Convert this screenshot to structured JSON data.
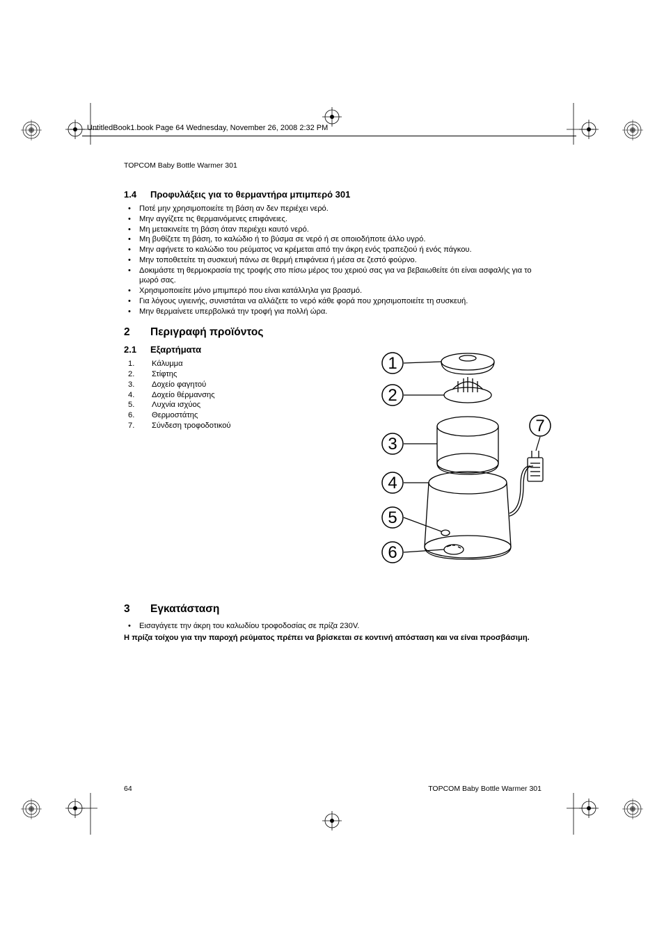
{
  "header_line": "UntitledBook1.book  Page 64  Wednesday, November 26, 2008  2:32 PM",
  "running_head": "TOPCOM Baby Bottle Warmer 301",
  "section_1_4": {
    "num": "1.4",
    "title": "Προφυλάξεις για το θερμαντήρα μπιμπερό 301",
    "items": [
      "Ποτέ μην χρησιμοποιείτε τη βάση αν δεν περιέχει νερό.",
      "Μην αγγίζετε τις θερμαινόμενες επιφάνειες.",
      "Μη μετακινείτε τη βάση όταν περιέχει καυτό νερό.",
      "Μη βυθίζετε τη βάση, το καλώδιο ή το βύσμα σε νερό ή σε οποιοδήποτε άλλο υγρό.",
      "Μην αφήνετε το καλώδιο του ρεύματος να κρέμεται από την άκρη ενός τραπεζιού ή ενός πάγκου.",
      "Μην τοποθετείτε τη συσκευή πάνω σε θερμή επιφάνεια ή μέσα σε ζεστό φούρνο.",
      "Δοκιμάστε τη θερμοκρασία της τροφής στο πίσω μέρος του χεριού σας για να βεβαιωθείτε ότι είναι ασφαλής για το μωρό σας.",
      "Χρησιμοποιείτε μόνο μπιμπερό που είναι κατάλληλα για βρασμό.",
      "Για λόγους υγιεινής, συνιστάται να αλλάζετε το νερό κάθε φορά που χρησιμοποιείτε τη συσκευή.",
      "Μην θερμαίνετε υπερβολικά την τροφή για πολλή ώρα."
    ]
  },
  "section_2": {
    "num": "2",
    "title": "Περιγραφή προϊόντος"
  },
  "section_2_1": {
    "num": "2.1",
    "title": "Εξαρτήματα",
    "parts": [
      "Κάλυμμα",
      "Στίφτης",
      "Δοχείο φαγητού",
      "Δοχείο θέρμανσης",
      "Λυχνία ισχύος",
      "Θερμοστάτης",
      "Σύνδεση τροφοδοτικού"
    ]
  },
  "section_3": {
    "num": "3",
    "title": "Εγκατάσταση",
    "items": [
      "Εισαγάγετε την άκρη του καλωδίου τροφοδοσίας σε πρίζα 230V."
    ],
    "note": "Η πρίζα τοίχου για την παροχή ρεύματος πρέπει να βρίσκεται σε κοντινή απόσταση και να είναι προσβάσιμη."
  },
  "footer": {
    "page": "64",
    "title": "TOPCOM Baby Bottle Warmer 301"
  },
  "diagram": {
    "labels": [
      "1",
      "2",
      "3",
      "4",
      "5",
      "6",
      "7"
    ],
    "label_fontsize": 24,
    "stroke": "#000000",
    "fill": "#ffffff",
    "circle_r": 15
  }
}
